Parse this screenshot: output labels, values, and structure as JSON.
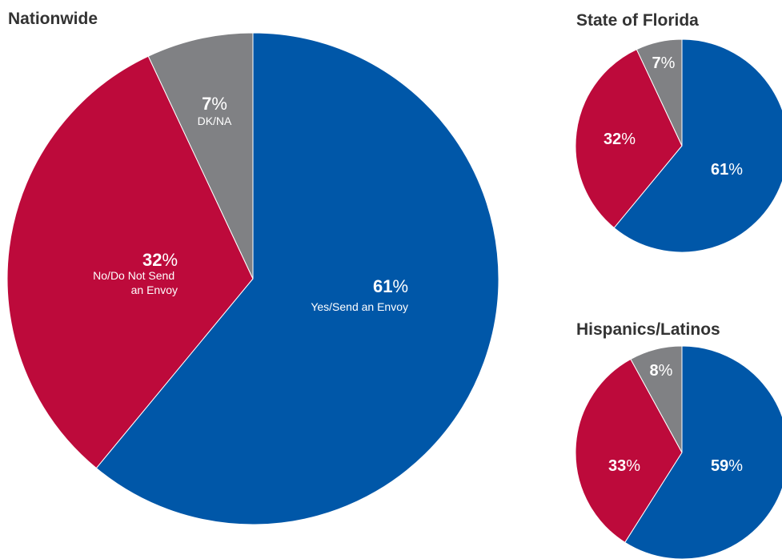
{
  "colors": {
    "yes": "#0057a8",
    "no": "#bd0a3b",
    "dk": "#808184"
  },
  "chart_data": [
    {
      "type": "pie",
      "title": "Nationwide",
      "slices": [
        {
          "value": 61,
          "unit": "%",
          "label": "Yes/Send an Envoy",
          "color": "#0057a8"
        },
        {
          "value": 32,
          "unit": "%",
          "label": "No/Do Not Send an Envoy",
          "color": "#bd0a3b"
        },
        {
          "value": 7,
          "unit": "%",
          "label": "DK/NA",
          "color": "#808184"
        }
      ]
    },
    {
      "type": "pie",
      "title": "State of Florida",
      "slices": [
        {
          "value": 61,
          "unit": "%",
          "label": "",
          "color": "#0057a8"
        },
        {
          "value": 32,
          "unit": "%",
          "label": "",
          "color": "#bd0a3b"
        },
        {
          "value": 7,
          "unit": "%",
          "label": "",
          "color": "#808184"
        }
      ]
    },
    {
      "type": "pie",
      "title": "Hispanics/Latinos",
      "slices": [
        {
          "value": 59,
          "unit": "%",
          "label": "",
          "color": "#0057a8"
        },
        {
          "value": 33,
          "unit": "%",
          "label": "",
          "color": "#bd0a3b"
        },
        {
          "value": 8,
          "unit": "%",
          "label": "",
          "color": "#808184"
        }
      ]
    }
  ]
}
